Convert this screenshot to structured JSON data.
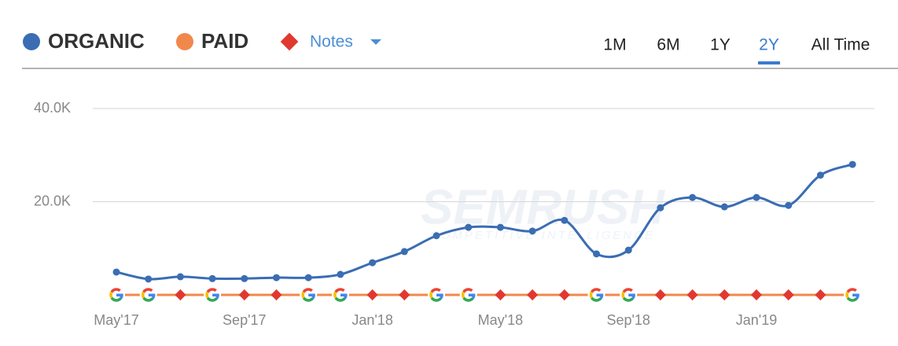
{
  "chart_data": {
    "type": "line",
    "series": [
      {
        "name": "ORGANIC",
        "color": "#3a6db3",
        "values": [
          4900,
          3400,
          3900,
          3500,
          3500,
          3700,
          3700,
          4400,
          6900,
          9300,
          12700,
          14500,
          14500,
          13700,
          16000,
          8800,
          9600,
          18700,
          20900,
          18900,
          20900,
          19200,
          25700,
          28000
        ]
      },
      {
        "name": "PAID",
        "color": "#f0884c",
        "values": [
          0,
          0,
          0,
          0,
          0,
          0,
          0,
          0,
          0,
          0,
          0,
          0,
          0,
          0,
          0,
          0,
          0,
          0,
          0,
          0,
          0,
          0,
          0,
          0
        ]
      }
    ],
    "categories": [
      "May'17",
      null,
      null,
      null,
      "Sep'17",
      null,
      null,
      null,
      "Jan'18",
      null,
      null,
      null,
      "May'18",
      null,
      null,
      null,
      "Sep'18",
      null,
      null,
      null,
      "Jan'19",
      null,
      null,
      null
    ],
    "ylim": [
      0,
      40000
    ],
    "yticks": [
      {
        "value": 20000,
        "label": "20.0K"
      },
      {
        "value": 40000,
        "label": "40.0K"
      }
    ],
    "grid": true,
    "notes_label": "Notes",
    "notes_color": "#e0392f",
    "ranges": [
      "1M",
      "6M",
      "1Y",
      "2Y",
      "All Time"
    ],
    "selected_range": "2Y",
    "watermark": [
      "SEMRUSH",
      "COMPETITIVE INTELLIGENCE"
    ]
  }
}
